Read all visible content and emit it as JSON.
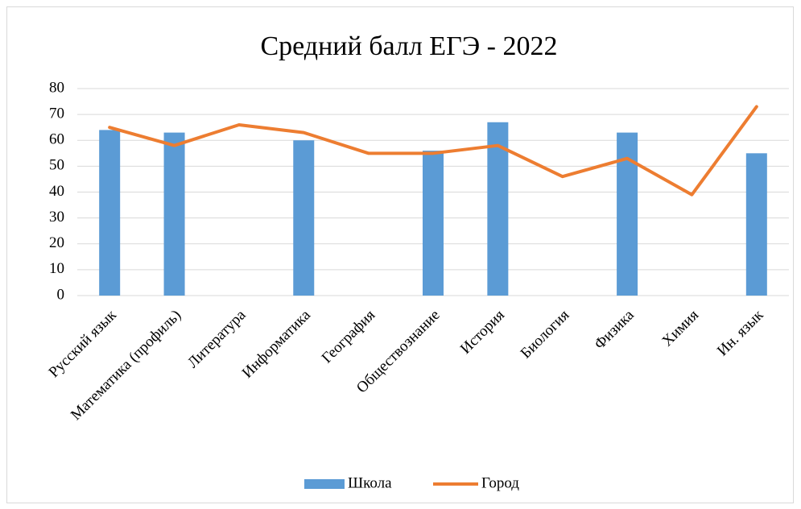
{
  "chart_data": {
    "type": "bar-line",
    "title": "Средний балл ЕГЭ - 2022",
    "categories": [
      "Русский язык",
      "Математика (профиль)",
      "Литература",
      "Информатика",
      "География",
      "Обществознание",
      "История",
      "Биология",
      "Физика",
      "Химия",
      "Ин. язык"
    ],
    "series": [
      {
        "name": "Школа",
        "type": "bar",
        "color": "#5b9bd5",
        "values": [
          64,
          63,
          null,
          60,
          null,
          56,
          67,
          null,
          63,
          null,
          55
        ]
      },
      {
        "name": "Город",
        "type": "line",
        "color": "#ed7d31",
        "values": [
          65,
          58,
          66,
          63,
          55,
          55,
          58,
          46,
          53,
          39,
          73
        ]
      }
    ],
    "ylim": [
      0,
      80
    ],
    "yticks": [
      0,
      10,
      20,
      30,
      40,
      50,
      60,
      70,
      80
    ],
    "grid": true,
    "legend": "bottom"
  }
}
